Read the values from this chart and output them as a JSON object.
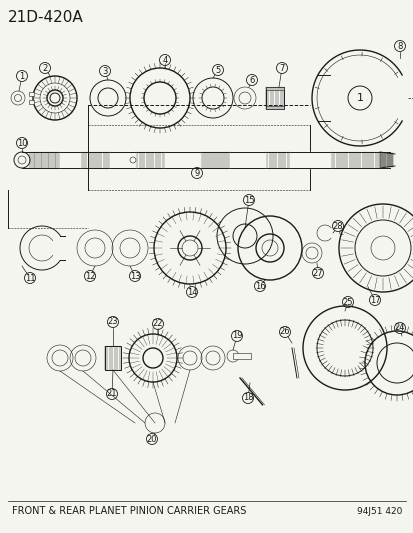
{
  "title": "21D-420A",
  "bottom_label": "FRONT & REAR PLANET PINION CARRIER GEARS",
  "bottom_right": "94J51 420",
  "bg": "#f5f5f0",
  "lc": "#1a1a1a",
  "title_fontsize": 11,
  "label_fontsize": 7,
  "callout_fontsize": 6.5
}
